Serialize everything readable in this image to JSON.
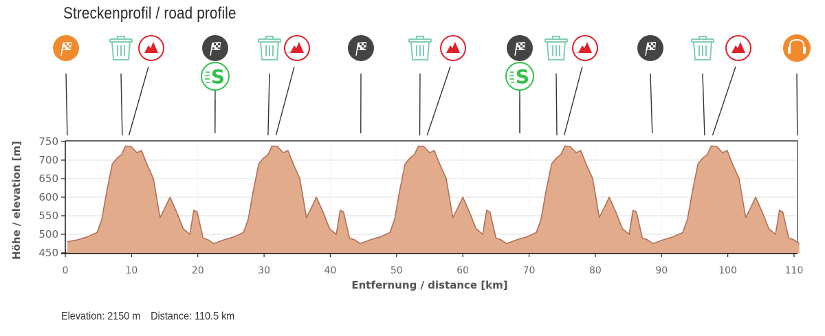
{
  "header": {
    "title": "Streckenprofil / road profile"
  },
  "footer": {
    "elevation": "Elevation: 2150 m",
    "distance": "Distance: 110.5 km"
  },
  "colors": {
    "fill": "#e2ab8c",
    "line": "#b0705a",
    "start_orange": "#f08a2c",
    "lap_dark": "#444444",
    "trash_green": "#7fcfb0",
    "climb_red": "#e0202a",
    "sprint_green": "#33c14a"
  },
  "markers": [
    {
      "type": "start-flag",
      "km": 0.3,
      "icon_x": 96,
      "row": 0,
      "color": "#f08a2c"
    },
    {
      "type": "waste-zone",
      "km": 8.6,
      "icon_x": 176,
      "row": 0
    },
    {
      "type": "mountain",
      "km": 9.6,
      "icon_x": 220,
      "row": 0
    },
    {
      "type": "lap-flag",
      "km": 22.6,
      "icon_x": 313,
      "row": 0
    },
    {
      "type": "sprint",
      "km": 22.6,
      "icon_x": 313,
      "row": 1
    },
    {
      "type": "waste-zone",
      "km": 30.6,
      "icon_x": 392,
      "row": 0
    },
    {
      "type": "mountain",
      "km": 31.8,
      "icon_x": 432,
      "row": 0
    },
    {
      "type": "lap-flag",
      "km": 44.6,
      "icon_x": 525,
      "row": 0
    },
    {
      "type": "waste-zone",
      "km": 53.5,
      "icon_x": 611,
      "row": 0
    },
    {
      "type": "mountain",
      "km": 54.6,
      "icon_x": 659,
      "row": 0
    },
    {
      "type": "lap-flag",
      "km": 68.6,
      "icon_x": 756,
      "row": 0
    },
    {
      "type": "sprint",
      "km": 68.6,
      "icon_x": 756,
      "row": 1
    },
    {
      "type": "waste-zone",
      "km": 74.2,
      "icon_x": 809,
      "row": 0
    },
    {
      "type": "mountain",
      "km": 75.3,
      "icon_x": 851,
      "row": 0
    },
    {
      "type": "lap-flag",
      "km": 88.6,
      "icon_x": 946,
      "row": 0
    },
    {
      "type": "waste-zone",
      "km": 96.5,
      "icon_x": 1022,
      "row": 0
    },
    {
      "type": "mountain",
      "km": 97.7,
      "icon_x": 1074,
      "row": 0
    },
    {
      "type": "finish",
      "km": 110.5,
      "icon_x": 1159,
      "row": 0,
      "color": "#f08a2c"
    }
  ],
  "chart_data": {
    "type": "area",
    "title": "Streckenprofil / road profile",
    "xlabel": "Entfernung / distance [km]",
    "ylabel": "Höhe / elevation [m]",
    "xlim": [
      0,
      110.5
    ],
    "ylim": [
      450,
      750
    ],
    "xticks": [
      0,
      10,
      20,
      30,
      40,
      50,
      60,
      70,
      80,
      90,
      100,
      110
    ],
    "yticks": [
      450,
      500,
      550,
      600,
      650,
      700,
      750
    ],
    "grid": "horizontal",
    "legend": "none",
    "laps": 5,
    "lap_length_km": 22.1,
    "lap_profile": {
      "x": [
        0,
        1.5,
        3,
        4.5,
        5.2,
        6,
        6.8,
        7.5,
        8.2,
        8.8,
        9.6,
        10.5,
        11.2,
        12,
        13,
        14,
        14.7,
        15.5,
        16.5,
        17.5,
        18.5,
        19.1,
        19.6,
        20.5,
        21.3,
        22.1
      ],
      "y": [
        480,
        485,
        493,
        505,
        540,
        620,
        690,
        705,
        715,
        738,
        737,
        720,
        726,
        690,
        650,
        545,
        570,
        600,
        560,
        515,
        500,
        565,
        560,
        490,
        485,
        475
      ]
    },
    "summary": {
      "elevation_gain_m": 2150,
      "distance_km": 110.5
    }
  }
}
